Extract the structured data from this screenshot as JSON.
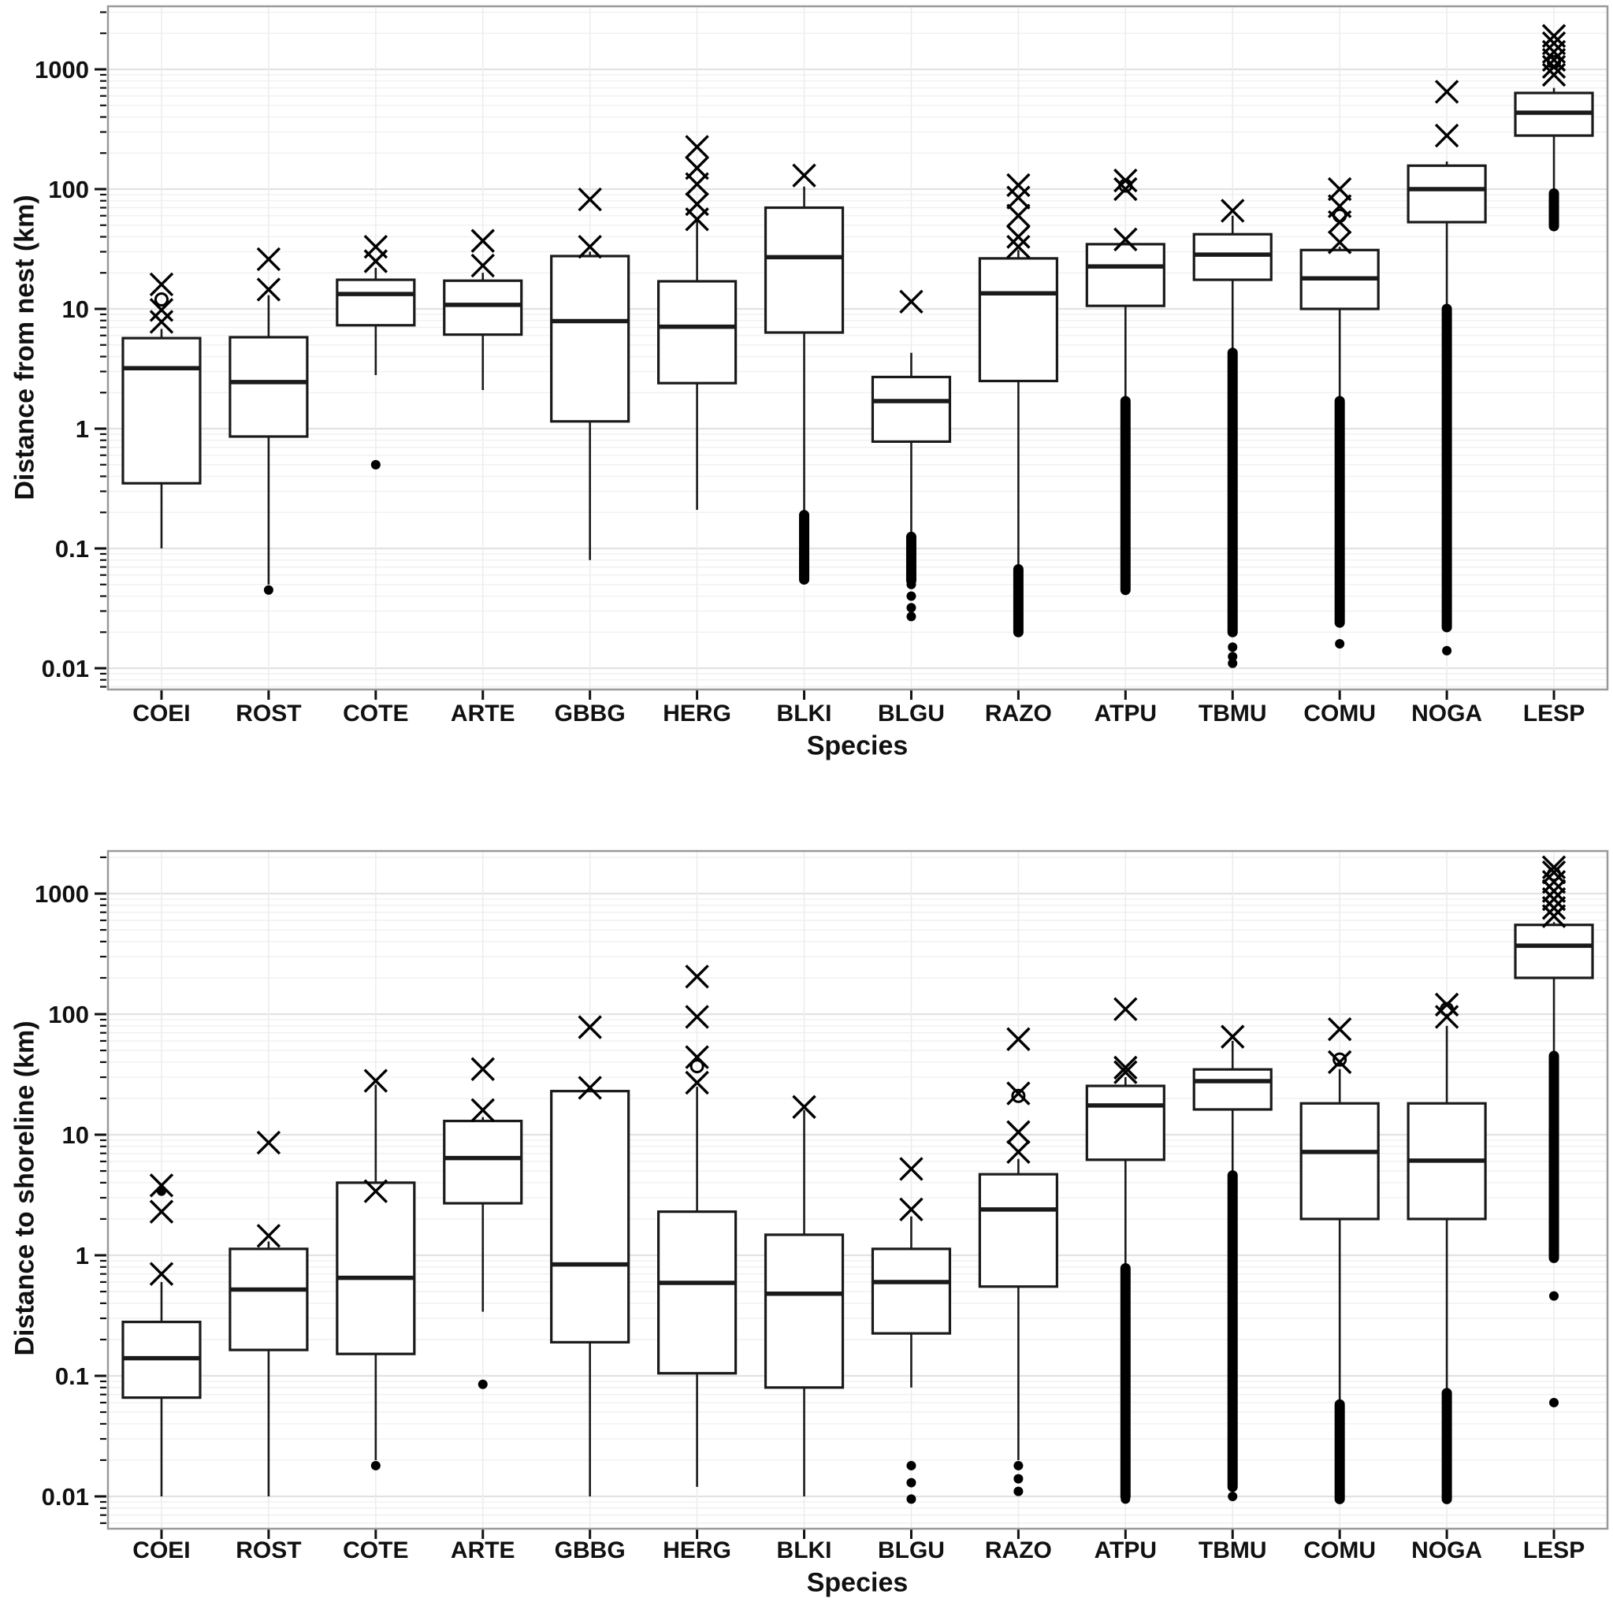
{
  "figure": {
    "xlabel_top": "Species",
    "xlabel_bottom": "Species",
    "ylabel_top": "Distance from nest (km)",
    "ylabel_bottom": "Distance to shoreline (km)"
  },
  "colors": {
    "box_stroke": "#1a1a1a",
    "box_fill": "#ffffff",
    "grid_major": "#e2e2e2",
    "grid_minor": "#efefef",
    "panel_border": "#9a9a9a",
    "text": "#111111"
  },
  "chart_data": [
    {
      "type": "boxplot",
      "title": "",
      "xlabel": "Species",
      "ylabel": "Distance from nest (km)",
      "yscale": "log",
      "ylim": [
        0.006,
        3000
      ],
      "grid": true,
      "yticks": [
        {
          "label": "1000",
          "value": 1000
        },
        {
          "label": "100",
          "value": 100
        },
        {
          "label": "10",
          "value": 10
        },
        {
          "label": "1",
          "value": 1
        },
        {
          "label": "0.1",
          "value": 0.1
        },
        {
          "label": "0.01",
          "value": 0.01
        }
      ],
      "categories": [
        "COEI",
        "ROST",
        "COTE",
        "ARTE",
        "GBBG",
        "HERG",
        "BLKI",
        "BLGU",
        "RAZO",
        "ATPU",
        "TBMU",
        "COMU",
        "NOGA",
        "LESP"
      ],
      "boxes": [
        {
          "species": "COEI",
          "whisker_low": 0.1,
          "q1": 0.35,
          "median": 3.2,
          "q3": 5.7,
          "whisker_high": 6.8,
          "outliers_x": [
            7.8,
            9.8,
            16
          ],
          "outliers_circle": [
            12
          ],
          "outliers_dot": [],
          "dot_column": null
        },
        {
          "species": "ROST",
          "whisker_low": 0.05,
          "q1": 0.86,
          "median": 2.45,
          "q3": 5.8,
          "whisker_high": 13,
          "outliers_x": [
            14.5,
            26
          ],
          "outliers_circle": [],
          "outliers_dot": [
            0.045
          ],
          "dot_column": null
        },
        {
          "species": "COTE",
          "whisker_low": 2.8,
          "q1": 7.3,
          "median": 13.3,
          "q3": 17.5,
          "whisker_high": 22,
          "outliers_x": [
            25,
            33
          ],
          "outliers_circle": [],
          "outliers_dot": [
            0.5
          ],
          "dot_column": null
        },
        {
          "species": "ARTE",
          "whisker_low": 2.1,
          "q1": 6.1,
          "median": 10.8,
          "q3": 17.2,
          "whisker_high": 20,
          "outliers_x": [
            23,
            37
          ],
          "outliers_circle": [],
          "outliers_dot": [],
          "dot_column": null
        },
        {
          "species": "GBBG",
          "whisker_low": 0.08,
          "q1": 1.15,
          "median": 7.9,
          "q3": 27.6,
          "whisker_high": 30,
          "outliers_x": [
            33,
            82
          ],
          "outliers_circle": [],
          "outliers_dot": [],
          "dot_column": null
        },
        {
          "species": "HERG",
          "whisker_low": 0.21,
          "q1": 2.4,
          "median": 7.1,
          "q3": 17,
          "whisker_high": 55,
          "outliers_x": [
            56,
            75,
            110,
            150,
            225
          ],
          "outliers_circle": [],
          "outliers_dot": [],
          "dot_column": null
        },
        {
          "species": "BLKI",
          "whisker_low": 0.2,
          "q1": 6.35,
          "median": 27,
          "q3": 70,
          "whisker_high": 105,
          "outliers_x": [
            130
          ],
          "outliers_circle": [],
          "outliers_dot": [],
          "dot_column": [
            0.055,
            0.19
          ]
        },
        {
          "species": "BLGU",
          "whisker_low": 0.13,
          "q1": 0.78,
          "median": 1.7,
          "q3": 2.7,
          "whisker_high": 4.3,
          "outliers_x": [
            11.5
          ],
          "outliers_circle": [],
          "outliers_dot": [
            0.05,
            0.04,
            0.032,
            0.027
          ],
          "dot_column": [
            0.054,
            0.125
          ]
        },
        {
          "species": "RAZO",
          "whisker_low": 0.07,
          "q1": 2.5,
          "median": 13.5,
          "q3": 26.4,
          "whisker_high": 31,
          "outliers_x": [
            33,
            40,
            60,
            85,
            108
          ],
          "outliers_circle": [],
          "outliers_dot": [],
          "dot_column": [
            0.02,
            0.067
          ]
        },
        {
          "species": "ATPU",
          "whisker_low": 1.75,
          "q1": 10.6,
          "median": 22.6,
          "q3": 34.7,
          "whisker_high": 36,
          "outliers_x": [
            38,
            100,
            118
          ],
          "outliers_circle": [
            107
          ],
          "outliers_dot": [],
          "dot_column": [
            0.045,
            1.7
          ]
        },
        {
          "species": "TBMU",
          "whisker_low": 4.4,
          "q1": 17.5,
          "median": 28.4,
          "q3": 42,
          "whisker_high": 60,
          "outliers_x": [
            66
          ],
          "outliers_circle": [],
          "outliers_dot": [
            0.011,
            0.0125,
            0.015
          ],
          "dot_column": [
            0.02,
            4.3
          ]
        },
        {
          "species": "COMU",
          "whisker_low": 1.75,
          "q1": 10,
          "median": 18,
          "q3": 31,
          "whisker_high": 33,
          "outliers_x": [
            36,
            53,
            72,
            100
          ],
          "outliers_circle": [
            60
          ],
          "outliers_dot": [
            0.016
          ],
          "dot_column": [
            0.024,
            1.7
          ]
        },
        {
          "species": "NOGA",
          "whisker_low": 10.5,
          "q1": 53,
          "median": 100,
          "q3": 157,
          "whisker_high": 170,
          "outliers_x": [
            280,
            650
          ],
          "outliers_circle": [],
          "outliers_dot": [
            0.014
          ],
          "dot_column": [
            0.022,
            10
          ]
        },
        {
          "species": "LESP",
          "whisker_low": 93,
          "q1": 280,
          "median": 435,
          "q3": 635,
          "whisker_high": 700,
          "outliers_x": [
            900,
            1050,
            1200,
            1400,
            1650,
            1900
          ],
          "outliers_circle": [
            1150
          ],
          "outliers_dot": [],
          "dot_column": [
            49,
            92
          ]
        }
      ]
    },
    {
      "type": "boxplot",
      "title": "",
      "xlabel": "Species",
      "ylabel": "Distance to shoreline (km)",
      "yscale": "log",
      "ylim": [
        0.005,
        2300
      ],
      "grid": true,
      "yticks": [
        {
          "label": "1000",
          "value": 1000
        },
        {
          "label": "100",
          "value": 100
        },
        {
          "label": "10",
          "value": 10
        },
        {
          "label": "1",
          "value": 1
        },
        {
          "label": "0.1",
          "value": 0.1
        },
        {
          "label": "0.01",
          "value": 0.01
        }
      ],
      "categories": [
        "COEI",
        "ROST",
        "COTE",
        "ARTE",
        "GBBG",
        "HERG",
        "BLKI",
        "BLGU",
        "RAZO",
        "ATPU",
        "TBMU",
        "COMU",
        "NOGA",
        "LESP"
      ],
      "boxes": [
        {
          "species": "COEI",
          "whisker_low": 0.01,
          "q1": 0.066,
          "median": 0.14,
          "q3": 0.28,
          "whisker_high": 0.6,
          "outliers_x": [
            0.7,
            2.3,
            3.8
          ],
          "outliers_circle": [],
          "outliers_dot": [
            3.4
          ],
          "dot_column": null
        },
        {
          "species": "ROST",
          "whisker_low": 0.01,
          "q1": 0.164,
          "median": 0.52,
          "q3": 1.13,
          "whisker_high": 1.3,
          "outliers_x": [
            1.45,
            8.6
          ],
          "outliers_circle": [],
          "outliers_dot": [],
          "dot_column": null
        },
        {
          "species": "COTE",
          "whisker_low": 0.02,
          "q1": 0.152,
          "median": 0.65,
          "q3": 4.0,
          "whisker_high": 26,
          "outliers_x": [
            3.4,
            28
          ],
          "outliers_circle": [],
          "outliers_dot": [
            0.018
          ],
          "dot_column": null
        },
        {
          "species": "ARTE",
          "whisker_low": 0.34,
          "q1": 2.7,
          "median": 6.4,
          "q3": 13,
          "whisker_high": 14,
          "outliers_x": [
            16,
            35
          ],
          "outliers_circle": [],
          "outliers_dot": [
            0.085
          ],
          "dot_column": null
        },
        {
          "species": "GBBG",
          "whisker_low": 0.01,
          "q1": 0.19,
          "median": 0.84,
          "q3": 23,
          "whisker_high": 23,
          "outliers_x": [
            24.5,
            78
          ],
          "outliers_circle": [],
          "outliers_dot": [],
          "dot_column": null
        },
        {
          "species": "HERG",
          "whisker_low": 0.012,
          "q1": 0.105,
          "median": 0.59,
          "q3": 2.3,
          "whisker_high": 25,
          "outliers_x": [
            27,
            44,
            95,
            205
          ],
          "outliers_circle": [
            37
          ],
          "outliers_dot": [],
          "dot_column": null
        },
        {
          "species": "BLKI",
          "whisker_low": 0.01,
          "q1": 0.08,
          "median": 0.48,
          "q3": 1.48,
          "whisker_high": 16,
          "outliers_x": [
            17
          ],
          "outliers_circle": [],
          "outliers_dot": [],
          "dot_column": null
        },
        {
          "species": "BLGU",
          "whisker_low": 0.08,
          "q1": 0.225,
          "median": 0.6,
          "q3": 1.13,
          "whisker_high": 2.1,
          "outliers_x": [
            2.4,
            5.2
          ],
          "outliers_circle": [],
          "outliers_dot": [
            0.018,
            0.013,
            0.0095
          ],
          "dot_column": null
        },
        {
          "species": "RAZO",
          "whisker_low": 0.02,
          "q1": 0.55,
          "median": 2.4,
          "q3": 4.7,
          "whisker_high": 6.3,
          "outliers_x": [
            7.2,
            10.5,
            22,
            62
          ],
          "outliers_circle": [
            21
          ],
          "outliers_dot": [
            0.018,
            0.014,
            0.011
          ],
          "dot_column": null
        },
        {
          "species": "ATPU",
          "whisker_low": 0.8,
          "q1": 6.2,
          "median": 17.5,
          "q3": 25.4,
          "whisker_high": 30,
          "outliers_x": [
            33,
            36,
            110
          ],
          "outliers_circle": [],
          "outliers_dot": [
            0.0095
          ],
          "dot_column": [
            0.01,
            0.78
          ]
        },
        {
          "species": "TBMU",
          "whisker_low": 4.7,
          "q1": 16.2,
          "median": 27.8,
          "q3": 34.8,
          "whisker_high": 60,
          "outliers_x": [
            65
          ],
          "outliers_circle": [],
          "outliers_dot": [
            0.01
          ],
          "dot_column": [
            0.012,
            4.6
          ]
        },
        {
          "species": "COMU",
          "whisker_low": 0.06,
          "q1": 2.0,
          "median": 7.2,
          "q3": 18.2,
          "whisker_high": 35,
          "outliers_x": [
            40,
            75
          ],
          "outliers_circle": [
            42
          ],
          "outliers_dot": [],
          "dot_column": [
            0.0095,
            0.058
          ]
        },
        {
          "species": "NOGA",
          "whisker_low": 0.075,
          "q1": 2.0,
          "median": 6.1,
          "q3": 18.2,
          "whisker_high": 80,
          "outliers_x": [
            95,
            120
          ],
          "outliers_circle": [
            110
          ],
          "outliers_dot": [],
          "dot_column": [
            0.0095,
            0.072
          ]
        },
        {
          "species": "LESP",
          "whisker_low": 45,
          "q1": 200,
          "median": 370,
          "q3": 550,
          "whisker_high": 580,
          "outliers_x": [
            650,
            760,
            900,
            1050,
            1250,
            1500,
            1650
          ],
          "outliers_circle": [
            1450
          ],
          "outliers_dot": [
            0.46,
            0.06
          ],
          "dot_column": [
            0.95,
            45
          ]
        }
      ]
    }
  ]
}
